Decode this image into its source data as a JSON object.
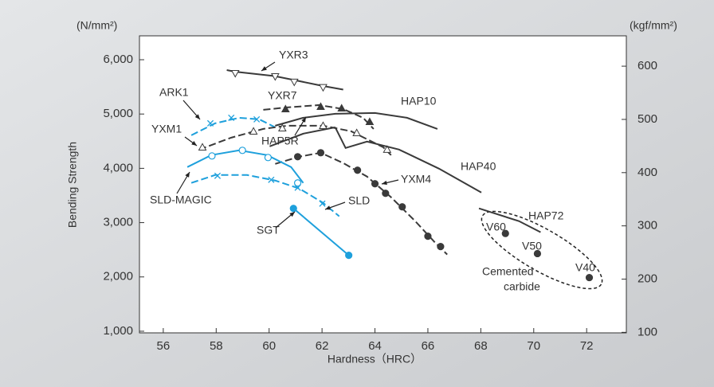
{
  "chart_data": {
    "type": "line",
    "y_unit": "(N/mm²)",
    "y2_unit": "(kgf/mm²)",
    "ylabel": "Bending Strength",
    "xlabel": "Hardness（HRC）",
    "xlim": [
      55.1,
      73.5
    ],
    "xticks": [
      56,
      58,
      60,
      62,
      64,
      66,
      68,
      70,
      72
    ],
    "ylim": [
      970,
      6440
    ],
    "yticks": [
      {
        "value": 1000,
        "label": "1,000"
      },
      {
        "value": 2000,
        "label": "2,000"
      },
      {
        "value": 3000,
        "label": "3,000"
      },
      {
        "value": 4000,
        "label": "4,000"
      },
      {
        "value": 5000,
        "label": "5,000"
      },
      {
        "value": 6000,
        "label": "6,000"
      }
    ],
    "y2lim": [
      99,
      657
    ],
    "y2ticks": [
      100,
      200,
      300,
      400,
      500,
      600
    ],
    "series": [
      {
        "name": "YXR3",
        "color": "#3a3a3a",
        "dash": false,
        "marker": "tri-down-open",
        "x": [
          58.4,
          58.7,
          60.2,
          61.0,
          62.0,
          62.8
        ],
        "values": [
          5810,
          5780,
          5700,
          5620,
          5520,
          5450
        ],
        "points_x": [
          58.72,
          60.23,
          60.95,
          62.04
        ],
        "points": [
          5750,
          5690,
          5590,
          5490
        ]
      },
      {
        "name": "YXR7",
        "color": "#3a3a3a",
        "dash": true,
        "marker": "tri-up",
        "x": [
          59.78,
          60.68,
          61.89,
          62.8,
          63.55,
          63.95
        ],
        "values": [
          5078,
          5122,
          5165,
          5092,
          4931,
          4726
        ],
        "points_x": [
          60.62,
          61.95,
          62.74,
          63.8
        ],
        "points": [
          5092,
          5136,
          5107,
          4858
        ]
      },
      {
        "name": "HAP10",
        "color": "#3a3a3a",
        "dash": false,
        "marker": null,
        "x": [
          60.23,
          61.29,
          62.5,
          64.0,
          65.21,
          66.36
        ],
        "values": [
          4785,
          4931,
          5004,
          5019,
          4931,
          4726
        ]
      },
      {
        "name": "ARK1",
        "color": "#1ea0dc",
        "dash": true,
        "marker": "x",
        "x": [
          57.06,
          57.96,
          58.87,
          59.63,
          60.23
        ],
        "values": [
          4609,
          4829,
          4931,
          4902,
          4756
        ],
        "points_x": [
          57.78,
          58.57,
          59.53
        ],
        "points": [
          4829,
          4931,
          4902
        ]
      },
      {
        "name": "YXM1",
        "color": "#3a3a3a",
        "dash": true,
        "marker": "tri-up-open",
        "x": [
          57.36,
          58.57,
          59.78,
          60.68,
          62.04,
          63.1,
          64.31,
          64.61
        ],
        "values": [
          4346,
          4565,
          4726,
          4785,
          4785,
          4682,
          4389,
          4243
        ],
        "points_x": [
          57.48,
          59.41,
          60.5,
          62.04,
          63.31,
          64.46
        ],
        "points": [
          4389,
          4682,
          4741,
          4785,
          4653,
          4346
        ]
      },
      {
        "name": "HAP5R",
        "color": "#3a3a3a",
        "dash": false,
        "marker": null,
        "x": [
          60.02,
          61.29,
          62.5
        ],
        "values": [
          4404,
          4638,
          4755
        ]
      },
      {
        "name": "HAP40",
        "color": "#3a3a3a",
        "dash": false,
        "marker": null,
        "x": [
          62.5,
          62.89,
          63.7,
          64.91,
          66.42,
          68.02
        ],
        "values": [
          4755,
          4375,
          4492,
          4346,
          3994,
          3555
        ]
      },
      {
        "name": "YXM4",
        "color": "#3a3a3a",
        "dash": true,
        "marker": "circle",
        "x": [
          60.23,
          61.14,
          61.95,
          62.8,
          63.7,
          64.61,
          65.52,
          66.27,
          66.73
        ],
        "values": [
          4082,
          4214,
          4287,
          4097,
          3848,
          3467,
          3028,
          2633,
          2413
        ],
        "points_x": [
          61.08,
          61.95,
          63.34,
          64.0,
          64.4,
          65.03,
          66.0,
          66.48
        ],
        "points": [
          4214,
          4287,
          3965,
          3716,
          3540,
          3291,
          2750,
          2559
        ]
      },
      {
        "name": "SLD-MAGIC",
        "color": "#1ea0dc",
        "dash": false,
        "marker": "circle-open",
        "x": [
          56.91,
          57.81,
          58.87,
          59.93,
          60.83,
          61.29
        ],
        "values": [
          4023,
          4243,
          4331,
          4243,
          4023,
          3731
        ],
        "points_x": [
          57.84,
          58.99,
          59.96,
          61.08
        ],
        "points": [
          4228,
          4331,
          4199,
          3731
        ]
      },
      {
        "name": "SLD",
        "color": "#1ea0dc",
        "dash": true,
        "marker": "x",
        "x": [
          57.06,
          57.96,
          59.17,
          60.23,
          61.14,
          62.04,
          62.65
        ],
        "values": [
          3731,
          3877,
          3877,
          3775,
          3628,
          3364,
          3116
        ],
        "points_x": [
          58.05,
          60.08,
          61.08,
          62.01
        ],
        "points": [
          3862,
          3789,
          3643,
          3350
        ]
      },
      {
        "name": "SGT",
        "color": "#1ea0dc",
        "dash": false,
        "marker": "circle",
        "x": [
          60.92,
          63.01
        ],
        "values": [
          3262,
          2398
        ],
        "points_x": [
          60.92,
          63.01
        ],
        "points": [
          3262,
          2398
        ]
      },
      {
        "name": "HAP72",
        "color": "#3a3a3a",
        "dash": false,
        "marker": null,
        "x": [
          67.93,
          69.44,
          70.26
        ],
        "values": [
          3262,
          3028,
          2823
        ]
      },
      {
        "color": "#3a3a3a",
        "marker": "circle",
        "labels": [
          "V60",
          "V50",
          "V40"
        ],
        "points_x": [
          68.93,
          70.14,
          72.1
        ],
        "points": [
          2800,
          2430,
          1988
        ]
      }
    ],
    "annotations": [
      "Cemented",
      "carbide"
    ]
  }
}
